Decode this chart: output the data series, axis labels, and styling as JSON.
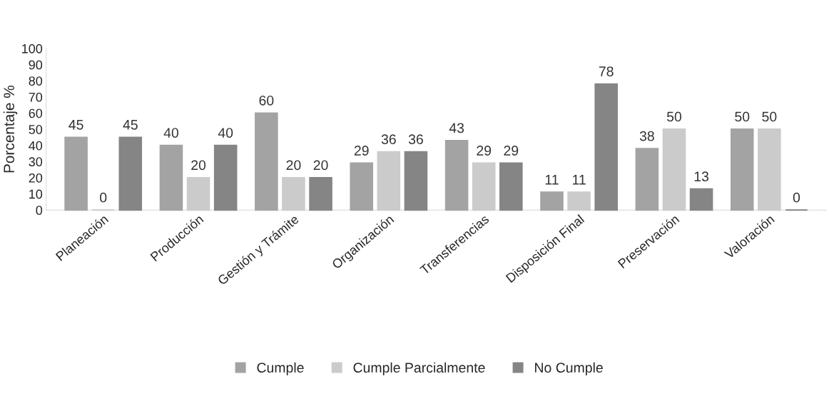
{
  "chart_data": {
    "type": "bar",
    "ylabel": "Porcentaje %",
    "categories": [
      "Planeación",
      "Producción",
      "Gestión y Trámite",
      "Organización",
      "Transferencias",
      "Disposición Final",
      "Preservación",
      "Valoración"
    ],
    "series": [
      {
        "name": "Cumple",
        "color": "#a3a3a3",
        "values": [
          45,
          40,
          60,
          29,
          43,
          11,
          38,
          50
        ]
      },
      {
        "name": "Cumple Parcialmente",
        "color": "#cbcbcb",
        "values": [
          0,
          20,
          20,
          36,
          29,
          11,
          50,
          50
        ]
      },
      {
        "name": "No Cumple",
        "color": "#858585",
        "values": [
          45,
          40,
          20,
          36,
          29,
          78,
          13,
          0
        ]
      }
    ],
    "ylim": [
      0,
      100
    ],
    "yticks": [
      0,
      10,
      20,
      30,
      40,
      50,
      60,
      70,
      80,
      90,
      100
    ],
    "data_labels": true,
    "legend": "bottom",
    "grid": false
  }
}
